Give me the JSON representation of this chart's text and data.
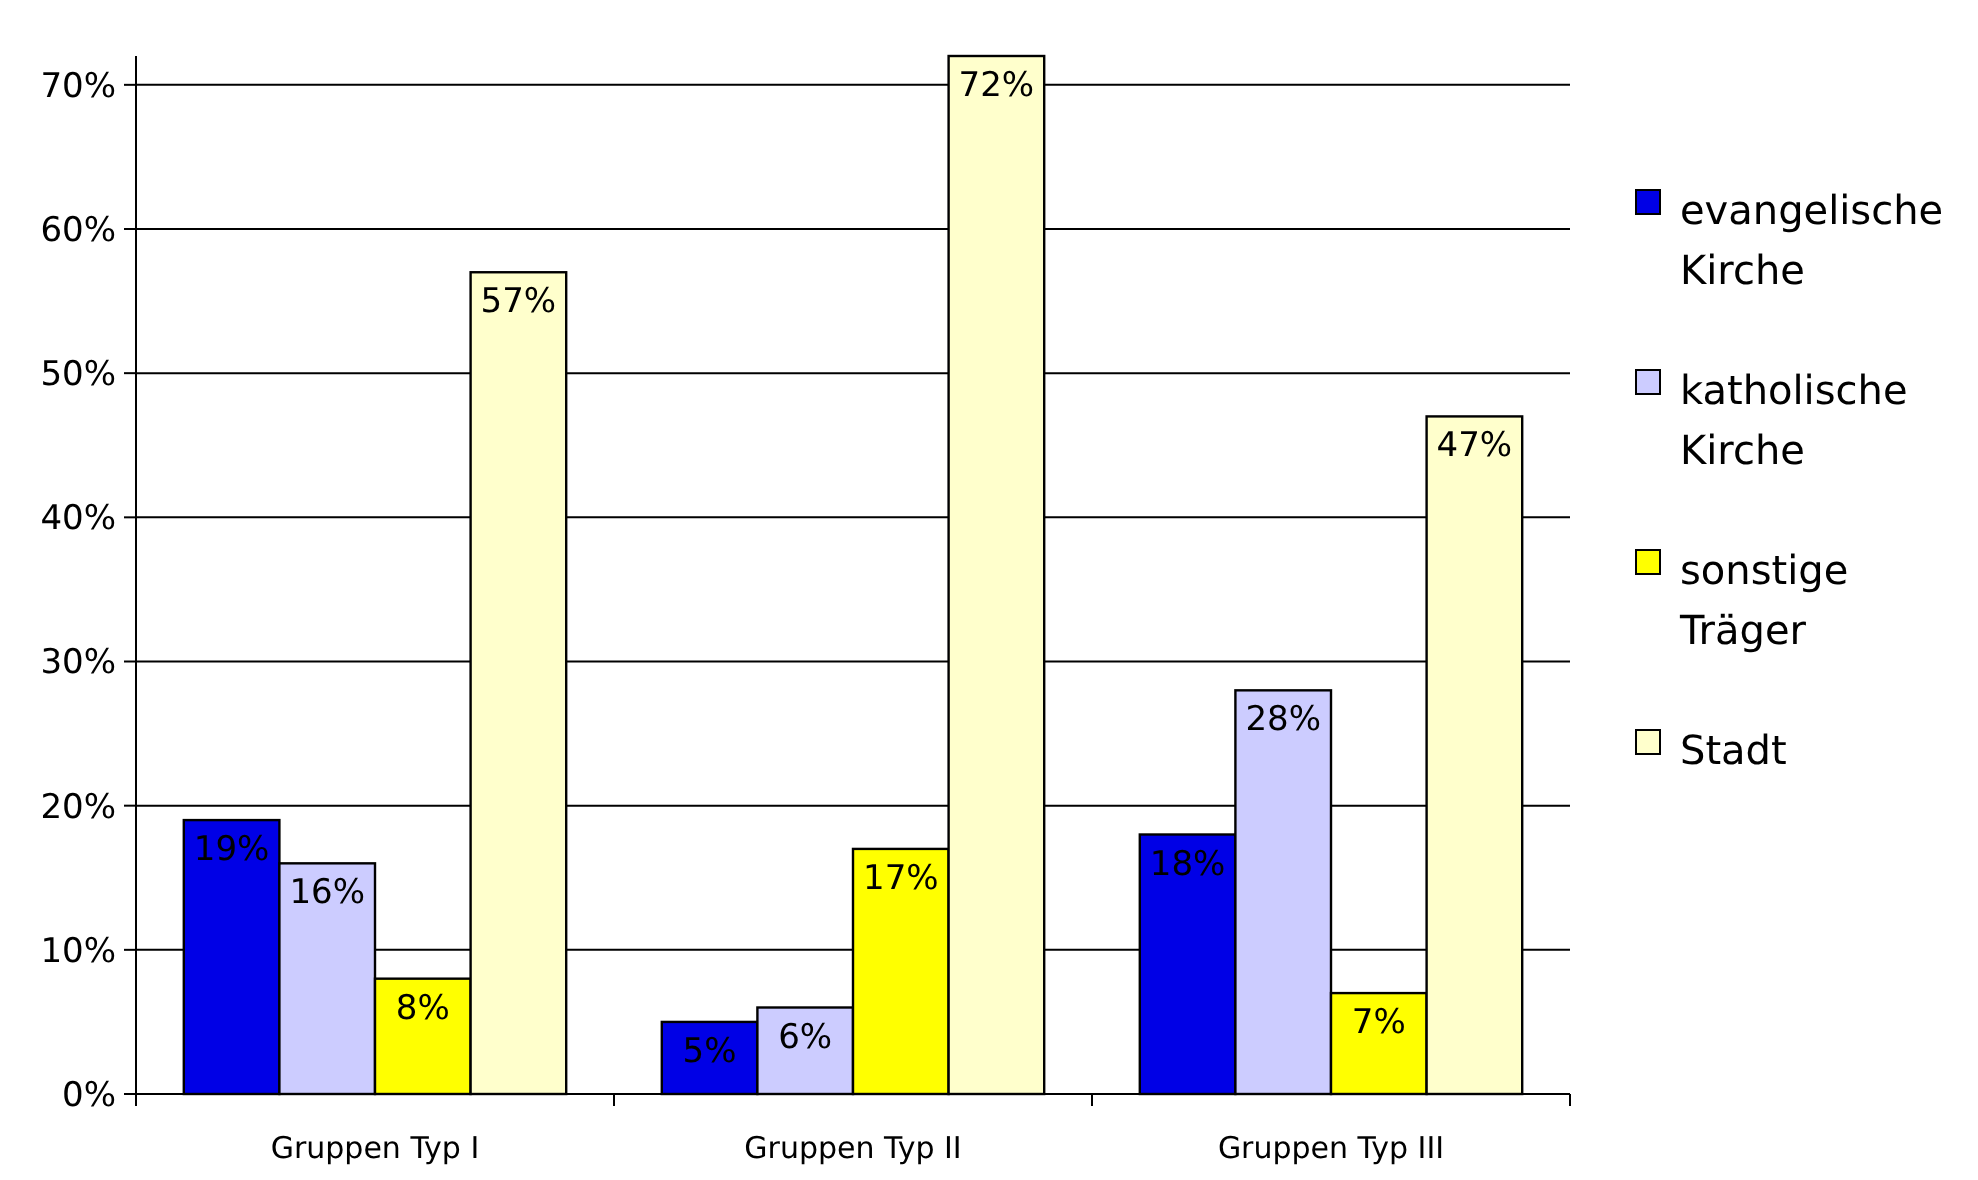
{
  "chart_data": {
    "type": "bar",
    "categories": [
      "Gruppen Typ I",
      "Gruppen Typ II",
      "Gruppen Typ III"
    ],
    "series": [
      {
        "name": "evangelische Kirche",
        "color": "#0000e6",
        "values": [
          19,
          5,
          18
        ],
        "value_labels": [
          "19%",
          "5%",
          "18%"
        ]
      },
      {
        "name": "katholische Kirche",
        "color": "#ccccff",
        "values": [
          16,
          6,
          28
        ],
        "value_labels": [
          "16%",
          "6%",
          "28%"
        ]
      },
      {
        "name": "sonstige Träger",
        "color": "#ffff00",
        "values": [
          8,
          17,
          7
        ],
        "value_labels": [
          "8%",
          "17%",
          "7%"
        ]
      },
      {
        "name": "Stadt",
        "color": "#ffffcc",
        "values": [
          57,
          72,
          47
        ],
        "value_labels": [
          "57%",
          "72%",
          "47%"
        ]
      }
    ],
    "ylim": [
      0,
      72
    ],
    "yticks": [
      {
        "value": 0,
        "label": "0%"
      },
      {
        "value": 10,
        "label": "10%"
      },
      {
        "value": 20,
        "label": "20%"
      },
      {
        "value": 30,
        "label": "30%"
      },
      {
        "value": 40,
        "label": "40%"
      },
      {
        "value": 50,
        "label": "50%"
      },
      {
        "value": 60,
        "label": "60%"
      },
      {
        "value": 70,
        "label": "70%"
      }
    ],
    "grid": "y",
    "legend": "right"
  }
}
